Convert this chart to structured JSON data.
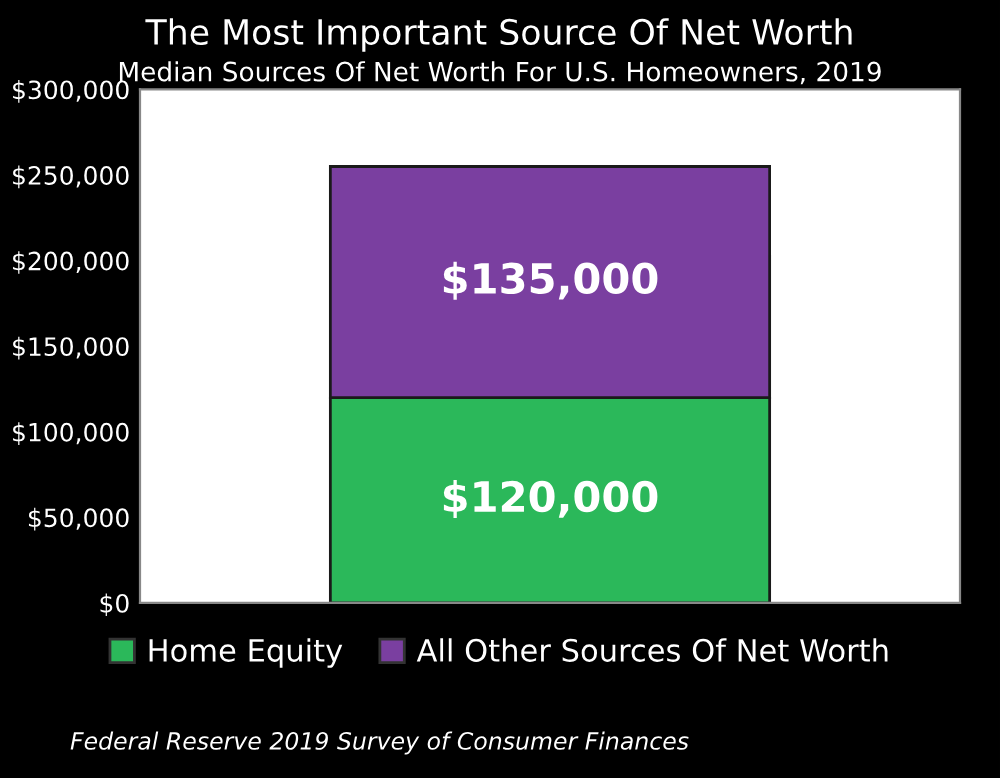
{
  "chart_data": {
    "type": "bar",
    "stacked": true,
    "title": "The Most Important Source Of Net Worth",
    "subtitle": "Median Sources Of Net Worth For U.S. Homeowners, 2019",
    "categories": [
      null
    ],
    "series": [
      {
        "name": "Home Equity",
        "color": "#2bb85a",
        "values": [
          120000
        ],
        "value_labels": [
          "$120,000"
        ]
      },
      {
        "name": "All Other Sources Of Net Worth",
        "color": "#7a3fa0",
        "values": [
          135000
        ],
        "value_labels": [
          "$135,000"
        ]
      }
    ],
    "ylim": [
      0,
      300000
    ],
    "yticks": [
      {
        "value": 0,
        "label": "$0"
      },
      {
        "value": 50000,
        "label": "$50,000"
      },
      {
        "value": 100000,
        "label": "$100,000"
      },
      {
        "value": 150000,
        "label": "$150,000"
      },
      {
        "value": 200000,
        "label": "$200,000"
      },
      {
        "value": 250000,
        "label": "$250,000"
      },
      {
        "value": 300000,
        "label": "$300,000"
      }
    ],
    "legend": "bottom",
    "annotations": [
      "Federal Reserve 2019 Survey of Consumer Finances"
    ]
  }
}
